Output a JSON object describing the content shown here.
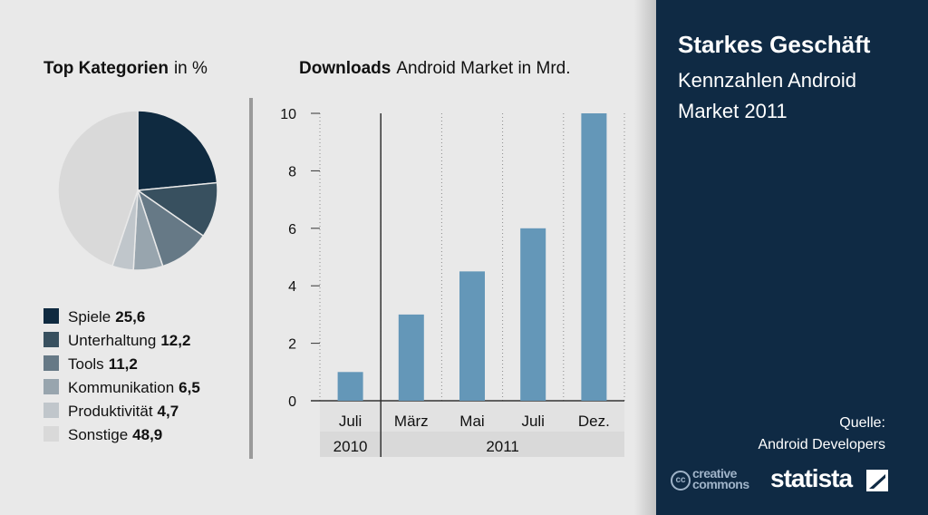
{
  "header": {
    "pie_title_bold": "Top Kategorien",
    "pie_title_unit": "in %",
    "bar_title_bold": "Downloads",
    "bar_title_unit": "Android Market in Mrd."
  },
  "side": {
    "title": "Starkes Geschäft",
    "subtitle": "Kennzahlen Android Market 2011",
    "source_label": "Quelle:",
    "source_value": "Android Developers",
    "cc_badge": "cc",
    "cc_line1": "creative",
    "cc_line2": "commons",
    "brand": "statista"
  },
  "colors": {
    "background": "#e9e9e9",
    "panel": "#0f2a44",
    "bar": "#6497b8",
    "axis": "#333333"
  },
  "chart_data": [
    {
      "type": "pie",
      "title": "Top Kategorien",
      "unit": "in %",
      "categories": [
        "Spiele",
        "Unterhaltung",
        "Tools",
        "Kommunikation",
        "Produktivität",
        "Sonstige"
      ],
      "values": [
        25.6,
        12.2,
        11.2,
        6.5,
        4.7,
        48.9
      ],
      "labels": [
        "25,6",
        "12,2",
        "11,2",
        "6,5",
        "4,7",
        "48,9"
      ],
      "colors": [
        "#0f2a40",
        "#38505f",
        "#667986",
        "#98a5ae",
        "#c0c6cb",
        "#d9d9d9"
      ],
      "legend": "below"
    },
    {
      "type": "bar",
      "title": "Downloads",
      "subtitle": "Android Market in Mrd.",
      "categories": [
        "Juli",
        "März",
        "Mai",
        "Juli",
        "Dez."
      ],
      "years": [
        {
          "label": "2010",
          "count": 1
        },
        {
          "label": "2011",
          "count": 4
        }
      ],
      "values": [
        1,
        3,
        4.5,
        6,
        10
      ],
      "ylim": [
        0,
        10
      ],
      "yticks": [
        0,
        2,
        4,
        6,
        8,
        10
      ],
      "grid": "vertical dotted",
      "color": "#6497b8"
    }
  ]
}
